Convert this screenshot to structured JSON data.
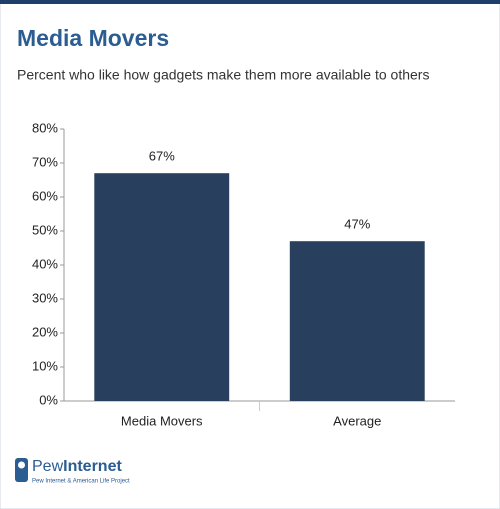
{
  "chart_data": {
    "type": "bar",
    "title": "Media Movers",
    "subtitle": "Percent who like how gadgets make them more available to others",
    "categories": [
      "Media Movers",
      "Average"
    ],
    "values": [
      67,
      47
    ],
    "value_labels": [
      "67%",
      "47%"
    ],
    "color": "#283f5d",
    "ylim": [
      0,
      80
    ],
    "yticks": [
      {
        "value": 0,
        "label": "0%"
      },
      {
        "value": 10,
        "label": "10%"
      },
      {
        "value": 20,
        "label": "20%"
      },
      {
        "value": 30,
        "label": "30%"
      },
      {
        "value": 40,
        "label": "40%"
      },
      {
        "value": 50,
        "label": "50%"
      },
      {
        "value": 60,
        "label": "60%"
      },
      {
        "value": 70,
        "label": "70%"
      },
      {
        "value": 80,
        "label": "80%"
      }
    ],
    "grid": false
  },
  "footer": {
    "brand_first": "Pew",
    "brand_second": "Internet",
    "tagline": "Pew Internet & American Life Project"
  }
}
